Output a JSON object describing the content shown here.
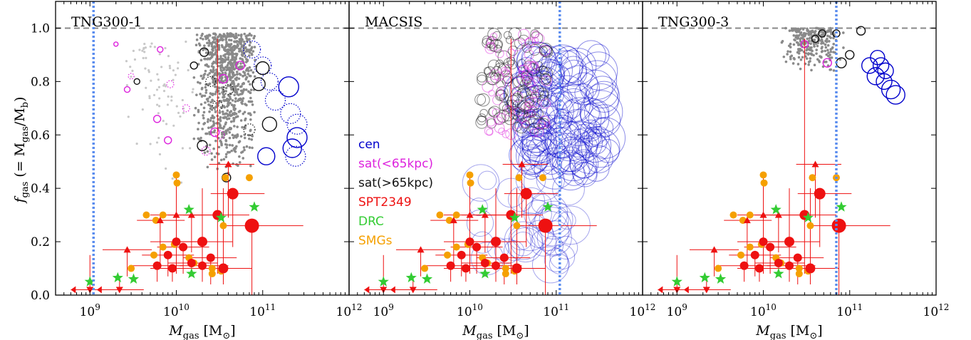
{
  "chart_data": {
    "type": "scatter",
    "layout": "three panels sharing the y axis",
    "ylabel_main": "f",
    "ylabel_sub": "gas",
    "ylabel_expr": "(= M",
    "ylabel_expr_sub1": "gas",
    "ylabel_slash": "/M",
    "ylabel_expr_sub2": "b",
    "ylabel_close": ")",
    "xlabel_main": "M",
    "xlabel_sub": "gas",
    "xlabel_unit": "[M",
    "xlabel_unit_sub": "⊙",
    "xlabel_close": "]",
    "xscale": "log",
    "xlim": [
      400000000.0,
      1000000000000.0
    ],
    "ylim": [
      0.0,
      1.1
    ],
    "x_tick_labels": [
      {
        "value": 1000000000.0,
        "base": "10",
        "exp": "9"
      },
      {
        "value": 10000000000.0,
        "base": "10",
        "exp": "10"
      },
      {
        "value": 100000000000.0,
        "base": "10",
        "exp": "11"
      },
      {
        "value": 1000000000000.0,
        "base": "10",
        "exp": "12"
      }
    ],
    "y_tick_labels": [
      "0.0",
      "0.2",
      "0.4",
      "0.6",
      "0.8",
      "1.0"
    ],
    "y_tick_values": [
      0.0,
      0.2,
      0.4,
      0.6,
      0.8,
      1.0
    ],
    "reference_line_y": 1.0,
    "colors": {
      "cen": "#0000cc",
      "sat_inner": "#dd22dd",
      "sat_outer": "#111111",
      "spt": "#ee1111",
      "drc": "#33cc33",
      "smg": "#f5a000",
      "grey": "#8a8a8a",
      "light_grey": "#c8c8c8",
      "limit_line": "#5b8def",
      "ref_line": "#888888"
    },
    "legend": [
      {
        "label": "cen",
        "color": "#0000cc"
      },
      {
        "label": "sat(<65kpc)",
        "color": "#dd22dd"
      },
      {
        "label": "sat(>65kpc)",
        "color": "#111111"
      },
      {
        "label": "SPT2349",
        "color": "#ee1111"
      },
      {
        "label": "DRC",
        "color": "#33cc33"
      },
      {
        "label": "SMGs",
        "color": "#f5a000"
      }
    ],
    "observations": {
      "spt2349": [
        {
          "x": 30000000000.0,
          "y": 0.3,
          "xerr_lo": 18000000000.0,
          "xerr_hi": 40000000000.0,
          "yerr_lo": 0.22,
          "yerr_hi": 0.66,
          "size": 7
        },
        {
          "x": 20000000000.0,
          "y": 0.2,
          "xerr_lo": 11000000000.0,
          "xerr_hi": 25000000000.0,
          "yerr_lo": 0.15,
          "yerr_hi": 0.2,
          "size": 7
        },
        {
          "x": 35000000000.0,
          "y": 0.1,
          "xerr_lo": 20000000000.0,
          "xerr_hi": 40000000000.0,
          "yerr_lo": 0.06,
          "yerr_hi": 0.3,
          "size": 7
        },
        {
          "x": 45000000000.0,
          "y": 0.38,
          "xerr_lo": 20000000000.0,
          "xerr_hi": 60000000000.0,
          "yerr_lo": 0.2,
          "yerr_hi": 0.0,
          "size": 8
        },
        {
          "x": 75000000000.0,
          "y": 0.26,
          "xerr_lo": 40000000000.0,
          "xerr_hi": 220000000000.0,
          "yerr_lo": 0.26,
          "yerr_hi": 0.0,
          "size": 10
        },
        {
          "x": 10000000000.0,
          "y": 0.2,
          "xerr_lo": 5000000000.0,
          "xerr_hi": 10000000000.0,
          "yerr_lo": 0.12,
          "yerr_hi": 0.25,
          "size": 6
        },
        {
          "x": 12000000000.0,
          "y": 0.18,
          "xerr_lo": 6000000000.0,
          "xerr_hi": 12000000000.0,
          "yerr_lo": 0.1,
          "yerr_hi": 0.0,
          "size": 6
        },
        {
          "x": 8000000000.0,
          "y": 0.15,
          "xerr_lo": 4000000000.0,
          "xerr_hi": 8000000000.0,
          "yerr_lo": 0.08,
          "yerr_hi": 0.0,
          "size": 6
        },
        {
          "x": 25000000000.0,
          "y": 0.14,
          "xerr_lo": 13000000000.0,
          "xerr_hi": 25000000000.0,
          "yerr_lo": 0.1,
          "yerr_hi": 0.0,
          "size": 6
        },
        {
          "x": 20000000000.0,
          "y": 0.11,
          "xerr_lo": 9000000000.0,
          "xerr_hi": 20000000000.0,
          "yerr_lo": 0.06,
          "yerr_hi": 0.0,
          "size": 6
        },
        {
          "x": 6000000000.0,
          "y": 0.11,
          "xerr_lo": 3000000000.0,
          "xerr_hi": 6000000000.0,
          "yerr_lo": 0.06,
          "yerr_hi": 0.0,
          "size": 6
        },
        {
          "x": 15000000000.0,
          "y": 0.12,
          "xerr_lo": 7000000000.0,
          "xerr_hi": 15000000000.0,
          "yerr_lo": 0.05,
          "yerr_hi": 0.0,
          "size": 6
        },
        {
          "x": 9000000000.0,
          "y": 0.1,
          "xerr_lo": 4000000000.0,
          "xerr_hi": 8000000000.0,
          "yerr_lo": 0.05,
          "yerr_hi": 0.0,
          "size": 6
        }
      ],
      "spt2349_upper_limits": [
        {
          "x": 40000000000.0,
          "y": 0.49,
          "xerr_lo": 16000000000.0,
          "xerr_hi": 40000000000.0,
          "yerr_lo": 0.2
        },
        {
          "x": 10000000000.0,
          "y": 0.3,
          "xerr_lo": 5000000000.0,
          "xerr_hi": 10000000000.0,
          "yerr_lo": 0.18
        },
        {
          "x": 15000000000.0,
          "y": 0.3,
          "xerr_lo": 7000000000.0,
          "xerr_hi": 15000000000.0,
          "yerr_lo": 0.14
        },
        {
          "x": 6500000000.0,
          "y": 0.28,
          "xerr_lo": 3000000000.0,
          "xerr_hi": 6000000000.0,
          "yerr_lo": 0.16
        },
        {
          "x": 2700000000.0,
          "y": 0.17,
          "xerr_lo": 1300000000.0,
          "xerr_hi": 2500000000.0,
          "yerr_lo": 0.1
        }
      ],
      "spt2349_low_limits": [
        {
          "x": 1000000000.0,
          "y": 0.02,
          "xerr_lo": 400000000.0,
          "xerr_hi": 1500000000.0,
          "yerr_hi": 0.13
        },
        {
          "x": 2200000000.0,
          "y": 0.02,
          "xerr_lo": 1000000000.0,
          "xerr_hi": 2000000000.0,
          "yerr_hi": 0.05
        }
      ],
      "drc": [
        {
          "x": 1000000000.0,
          "y": 0.05
        },
        {
          "x": 2100000000.0,
          "y": 0.065
        },
        {
          "x": 3200000000.0,
          "y": 0.06
        },
        {
          "x": 14000000000.0,
          "y": 0.32
        },
        {
          "x": 15000000000.0,
          "y": 0.08
        },
        {
          "x": 33000000000.0,
          "y": 0.29
        },
        {
          "x": 80000000000.0,
          "y": 0.33
        }
      ],
      "smgs": [
        {
          "x": 10000000000.0,
          "y": 0.45
        },
        {
          "x": 10200000000.0,
          "y": 0.42
        },
        {
          "x": 70000000000.0,
          "y": 0.44
        },
        {
          "x": 37000000000.0,
          "y": 0.44
        },
        {
          "x": 4500000000.0,
          "y": 0.3
        },
        {
          "x": 5800000000.0,
          "y": 0.28
        },
        {
          "x": 7000000000.0,
          "y": 0.3
        },
        {
          "x": 35000000000.0,
          "y": 0.26
        },
        {
          "x": 9500000000.0,
          "y": 0.19
        },
        {
          "x": 7000000000.0,
          "y": 0.18
        },
        {
          "x": 5500000000.0,
          "y": 0.15
        },
        {
          "x": 3000000000.0,
          "y": 0.1
        },
        {
          "x": 16000000000.0,
          "y": 0.12
        },
        {
          "x": 26000000000.0,
          "y": 0.1
        },
        {
          "x": 14000000000.0,
          "y": 0.14
        },
        {
          "x": 26000000000.0,
          "y": 0.08
        },
        {
          "x": 33000000000.0,
          "y": 0.09
        }
      ]
    },
    "panels": [
      {
        "title": "TNG300-1",
        "vline_x": 1100000000.0,
        "grey_cloud": {
          "x_log_range": [
            10.2,
            10.95
          ],
          "y_range": [
            0.45,
            0.98
          ],
          "n": 900
        },
        "light_grey_cloud": {
          "x_log_range": [
            9.3,
            10.3
          ],
          "y_range": [
            0.35,
            0.95
          ],
          "n": 80
        },
        "cen_circles": [
          {
            "x": 200000000000.0,
            "y": 0.78,
            "r": 14,
            "dotted": false
          },
          {
            "x": 250000000000.0,
            "y": 0.59,
            "r": 14,
            "dotted": false
          },
          {
            "x": 220000000000.0,
            "y": 0.55,
            "r": 13,
            "dotted": false
          },
          {
            "x": 110000000000.0,
            "y": 0.52,
            "r": 12,
            "dotted": false
          },
          {
            "x": 140000000000.0,
            "y": 0.73,
            "r": 14,
            "dotted": true
          },
          {
            "x": 210000000000.0,
            "y": 0.68,
            "r": 14,
            "dotted": true
          },
          {
            "x": 250000000000.0,
            "y": 0.64,
            "r": 14,
            "dotted": true
          },
          {
            "x": 240000000000.0,
            "y": 0.52,
            "r": 14,
            "dotted": true
          },
          {
            "x": 100000000000.0,
            "y": 0.86,
            "r": 12,
            "dotted": true
          },
          {
            "x": 75000000000.0,
            "y": 0.92,
            "r": 12,
            "dotted": true
          },
          {
            "x": 120000000000.0,
            "y": 0.8,
            "r": 12,
            "dotted": true
          }
        ],
        "sat_inner_circles": [
          {
            "x": 2000000000.0,
            "y": 0.94,
            "r": 3,
            "dotted": false
          },
          {
            "x": 2700000000.0,
            "y": 0.77,
            "r": 4,
            "dotted": false
          },
          {
            "x": 6500000000.0,
            "y": 0.92,
            "r": 4,
            "dotted": false
          },
          {
            "x": 6000000000.0,
            "y": 0.66,
            "r": 5,
            "dotted": false
          },
          {
            "x": 8000000000.0,
            "y": 0.58,
            "r": 5,
            "dotted": false
          },
          {
            "x": 35000000000.0,
            "y": 0.81,
            "r": 6,
            "dotted": false
          },
          {
            "x": 55000000000.0,
            "y": 0.86,
            "r": 6,
            "dotted": false
          },
          {
            "x": 28000000000.0,
            "y": 0.61,
            "r": 6,
            "dotted": false
          },
          {
            "x": 3000000000.0,
            "y": 0.82,
            "r": 4,
            "dotted": true
          },
          {
            "x": 8500000000.0,
            "y": 0.79,
            "r": 5,
            "dotted": true
          },
          {
            "x": 13000000000.0,
            "y": 0.7,
            "r": 5,
            "dotted": true
          },
          {
            "x": 32000000000.0,
            "y": 0.6,
            "r": 6,
            "dotted": true
          },
          {
            "x": 22000000000.0,
            "y": 0.54,
            "r": 6,
            "dotted": true
          }
        ],
        "sat_outer_circles": [
          {
            "x": 3500000000.0,
            "y": 0.8,
            "r": 4,
            "dotted": false
          },
          {
            "x": 16000000000.0,
            "y": 0.86,
            "r": 5,
            "dotted": false
          },
          {
            "x": 21000000000.0,
            "y": 0.91,
            "r": 6,
            "dotted": false
          },
          {
            "x": 90000000000.0,
            "y": 0.79,
            "r": 9,
            "dotted": false
          },
          {
            "x": 100000000000.0,
            "y": 0.85,
            "r": 9,
            "dotted": false
          },
          {
            "x": 120000000000.0,
            "y": 0.64,
            "r": 10,
            "dotted": false
          },
          {
            "x": 20000000000.0,
            "y": 0.56,
            "r": 7,
            "dotted": false
          },
          {
            "x": 38000000000.0,
            "y": 0.44,
            "r": 6,
            "dotted": false
          },
          {
            "x": 40000000000.0,
            "y": 0.77,
            "r": 7,
            "dotted": true
          },
          {
            "x": 30000000000.0,
            "y": 0.71,
            "r": 7,
            "dotted": true
          },
          {
            "x": 70000000000.0,
            "y": 0.62,
            "r": 8,
            "dotted": true
          },
          {
            "x": 25000000000.0,
            "y": 0.8,
            "r": 7,
            "dotted": true
          }
        ]
      },
      {
        "title": "MACSIS",
        "vline_x": 110000000000.0,
        "grey_cloud": null,
        "light_grey_cloud": null,
        "dense_cen": {
          "x_log_range": [
            10.6,
            11.6
          ],
          "y_range": [
            0.45,
            0.9
          ],
          "n": 130,
          "r_range": [
            12,
            30
          ]
        },
        "dense_cen_low": {
          "x_log_range": [
            10.1,
            11.2
          ],
          "y_range": [
            0.1,
            0.45
          ],
          "n": 40,
          "r_range": [
            12,
            28
          ]
        },
        "dense_sat_outer": {
          "x_log_range": [
            10.1,
            10.9
          ],
          "y_range": [
            0.62,
            0.98
          ],
          "n": 110,
          "r_range": [
            5,
            9
          ]
        },
        "dense_sat_inner": {
          "x_log_range": [
            10.2,
            10.9
          ],
          "y_range": [
            0.6,
            0.98
          ],
          "n": 70,
          "r_range": [
            4,
            8
          ]
        },
        "cen_circles": [],
        "sat_inner_circles": [],
        "sat_outer_circles": []
      },
      {
        "title": "TNG300-3",
        "vline_x": 70000000000.0,
        "grey_cloud": {
          "x_log_range": [
            10.2,
            10.95
          ],
          "y_range": [
            0.83,
            1.0
          ],
          "n": 260
        },
        "light_grey_cloud": null,
        "cen_circles": [
          {
            "x": 170000000000.0,
            "y": 0.86,
            "r": 11,
            "dotted": false
          },
          {
            "x": 200000000000.0,
            "y": 0.82,
            "r": 12,
            "dotted": false
          },
          {
            "x": 230000000000.0,
            "y": 0.86,
            "r": 11,
            "dotted": false
          },
          {
            "x": 250000000000.0,
            "y": 0.8,
            "r": 11,
            "dotted": false
          },
          {
            "x": 210000000000.0,
            "y": 0.89,
            "r": 10,
            "dotted": false
          },
          {
            "x": 300000000000.0,
            "y": 0.77,
            "r": 13,
            "dotted": false
          },
          {
            "x": 340000000000.0,
            "y": 0.75,
            "r": 13,
            "dotted": false
          },
          {
            "x": 260000000000.0,
            "y": 0.84,
            "r": 11,
            "dotted": false
          }
        ],
        "sat_inner_circles": [
          {
            "x": 30000000000.0,
            "y": 0.94,
            "r": 5,
            "dotted": false
          },
          {
            "x": 55000000000.0,
            "y": 0.87,
            "r": 6,
            "dotted": false
          }
        ],
        "sat_outer_circles": [
          {
            "x": 40000000000.0,
            "y": 0.96,
            "r": 5,
            "dotted": false
          },
          {
            "x": 48000000000.0,
            "y": 0.98,
            "r": 5,
            "dotted": false
          },
          {
            "x": 70000000000.0,
            "y": 0.98,
            "r": 5,
            "dotted": false
          },
          {
            "x": 100000000000.0,
            "y": 0.9,
            "r": 6,
            "dotted": false
          },
          {
            "x": 135000000000.0,
            "y": 0.99,
            "r": 6,
            "dotted": false
          },
          {
            "x": 80000000000.0,
            "y": 0.87,
            "r": 7,
            "dotted": false
          }
        ]
      }
    ]
  }
}
